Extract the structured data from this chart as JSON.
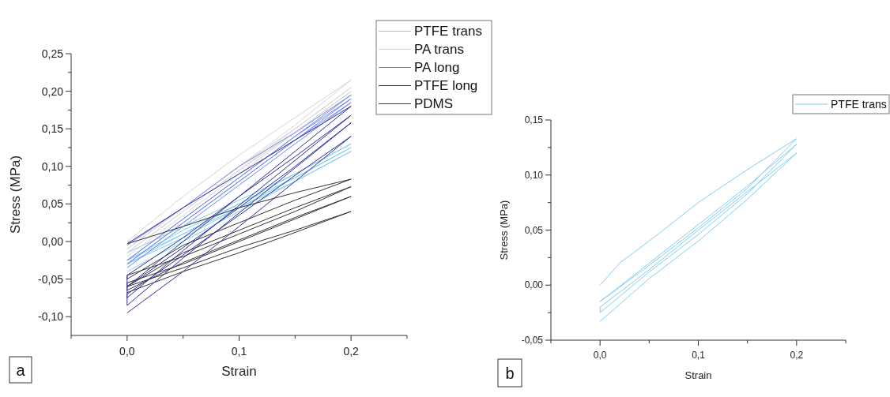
{
  "chart_data": [
    {
      "type": "line",
      "xlabel": "Strain",
      "ylabel": "Stress (MPa)",
      "annotations": [
        "a"
      ],
      "legend": "top right",
      "line_style": "solid",
      "marker": "none",
      "xlim": [
        -0.05,
        0.25
      ],
      "ylim": [
        -0.125,
        0.25
      ],
      "xticks": [
        {
          "value": -0.05,
          "label": null
        },
        {
          "value": 0,
          "label": "0,0"
        },
        {
          "value": 0.05,
          "label": null
        },
        {
          "value": 0.1,
          "label": "0,1"
        },
        {
          "value": 0.15,
          "label": null
        },
        {
          "value": 0.2,
          "label": "0,2"
        },
        {
          "value": 0.25,
          "label": null
        }
      ],
      "yticks": [
        {
          "value": -0.1,
          "label": "-0,10"
        },
        {
          "value": -0.075,
          "label": null
        },
        {
          "value": -0.05,
          "label": "-0,05"
        },
        {
          "value": -0.025,
          "label": null
        },
        {
          "value": 0,
          "label": "0,00"
        },
        {
          "value": 0.025,
          "label": null
        },
        {
          "value": 0.05,
          "label": "0,05"
        },
        {
          "value": 0.075,
          "label": null
        },
        {
          "value": 0.1,
          "label": "0,10"
        },
        {
          "value": 0.125,
          "label": null
        },
        {
          "value": 0.15,
          "label": "0,15"
        },
        {
          "value": 0.175,
          "label": null
        },
        {
          "value": 0.2,
          "label": "0,20"
        },
        {
          "value": 0.225,
          "label": null
        },
        {
          "value": 0.25,
          "label": "0,25"
        }
      ],
      "series": [
        {
          "name": "PTFE trans",
          "color": "#80cdf2",
          "x": [
            0,
            0.05,
            0.1,
            0.15,
            0.2,
            0.15,
            0.1,
            0.05,
            0,
            0.05,
            0.1,
            0.15,
            0.2,
            0.15,
            0.1,
            0.05,
            0,
            0.05,
            0.1,
            0.15,
            0.2,
            0.15,
            0.1,
            0.05,
            0
          ],
          "values": [
            -0.015,
            0.02,
            0.055,
            0.09,
            0.13,
            0.09,
            0.05,
            0.01,
            -0.025,
            0.015,
            0.05,
            0.085,
            0.125,
            0.085,
            0.045,
            0.005,
            -0.03,
            0.01,
            0.045,
            0.08,
            0.12,
            0.08,
            0.04,
            0,
            -0.04
          ]
        },
        {
          "name": "PA trans",
          "color": "#d4d4d4",
          "x": [
            0,
            0.05,
            0.1,
            0.15,
            0.2,
            0.15,
            0.1,
            0.05,
            0,
            0.05,
            0.1,
            0.15,
            0.2,
            0.15,
            0.1,
            0.05,
            0,
            0.05,
            0.1,
            0.15,
            0.2,
            0.15,
            0.1,
            0.05,
            0
          ],
          "values": [
            0,
            0.06,
            0.115,
            0.165,
            0.215,
            0.155,
            0.1,
            0.045,
            -0.01,
            0.045,
            0.1,
            0.15,
            0.205,
            0.15,
            0.095,
            0.04,
            -0.015,
            0.04,
            0.095,
            0.145,
            0.2,
            0.145,
            0.09,
            0.035,
            -0.02
          ]
        },
        {
          "name": "PA long",
          "color": "#6f86f0",
          "x": [
            0,
            0.05,
            0.1,
            0.15,
            0.2,
            0.15,
            0.1,
            0.05,
            0,
            0.05,
            0.1,
            0.15,
            0.2,
            0.15,
            0.1,
            0.05,
            0,
            0.05,
            0.1,
            0.15,
            0.2,
            0.15,
            0.1,
            0.05,
            0
          ],
          "values": [
            -0.005,
            0.045,
            0.1,
            0.145,
            0.195,
            0.14,
            0.085,
            0.03,
            -0.025,
            0.03,
            0.085,
            0.14,
            0.19,
            0.135,
            0.08,
            0.025,
            -0.03,
            0.025,
            0.08,
            0.135,
            0.185,
            0.13,
            0.075,
            0.02,
            -0.035
          ]
        },
        {
          "name": "PTFE long",
          "color": "#333333",
          "x": [
            0,
            0.05,
            0.1,
            0.15,
            0.2,
            0.15,
            0.1,
            0.05,
            0,
            0,
            0.05,
            0.1,
            0.15,
            0.2,
            0.15,
            0.1,
            0.05,
            0,
            0,
            0.05,
            0.1,
            0.15,
            0.2,
            0.15,
            0.1,
            0.05,
            0,
            0,
            0.05,
            0.1,
            0.15,
            0.2,
            0.15,
            0.1,
            0.05,
            0
          ],
          "values": [
            -0.003,
            0.02,
            0.045,
            0.065,
            0.083,
            0.055,
            0.025,
            -0.005,
            -0.05,
            -0.045,
            -0.02,
            0.01,
            0.04,
            0.073,
            0.045,
            0.015,
            -0.015,
            -0.06,
            -0.055,
            -0.03,
            0,
            0.03,
            0.06,
            0.032,
            0.002,
            -0.028,
            -0.065,
            -0.06,
            -0.035,
            -0.008,
            0.015,
            0.04,
            0.012,
            -0.015,
            -0.04,
            -0.068
          ]
        },
        {
          "name": "PDMS",
          "color": "#2b2b9c",
          "x": [
            0,
            0.05,
            0.1,
            0.15,
            0.2,
            0.15,
            0.1,
            0.05,
            0,
            0,
            0.05,
            0.1,
            0.15,
            0.2,
            0.15,
            0.1,
            0.05,
            0,
            0,
            0.05,
            0.1,
            0.15,
            0.2,
            0.15,
            0.1,
            0.05,
            0,
            0,
            0.05,
            0.1,
            0.15,
            0.2,
            0.15,
            0.1,
            0.05,
            0
          ],
          "values": [
            -0.003,
            0.045,
            0.09,
            0.135,
            0.18,
            0.12,
            0.06,
            0,
            -0.06,
            -0.045,
            0.005,
            0.06,
            0.113,
            0.168,
            0.108,
            0.048,
            -0.012,
            -0.075,
            -0.06,
            -0.008,
            0.045,
            0.1,
            0.158,
            0.098,
            0.038,
            -0.022,
            -0.085,
            -0.07,
            -0.018,
            0.035,
            0.088,
            0.14,
            0.08,
            0.02,
            -0.04,
            -0.095
          ]
        }
      ]
    },
    {
      "type": "line",
      "xlabel": "Strain",
      "ylabel": "Stress (MPa)",
      "annotations": [
        "b"
      ],
      "legend": "top right",
      "line_style": "solid",
      "marker": "none",
      "xlim": [
        -0.05,
        0.25
      ],
      "ylim": [
        -0.05,
        0.15
      ],
      "xticks": [
        {
          "value": -0.05,
          "label": null
        },
        {
          "value": 0,
          "label": "0,0"
        },
        {
          "value": 0.05,
          "label": null
        },
        {
          "value": 0.1,
          "label": "0,1"
        },
        {
          "value": 0.15,
          "label": null
        },
        {
          "value": 0.2,
          "label": "0,2"
        },
        {
          "value": 0.25,
          "label": null
        }
      ],
      "yticks": [
        {
          "value": -0.05,
          "label": "-0,05"
        },
        {
          "value": -0.025,
          "label": null
        },
        {
          "value": 0,
          "label": "0,00"
        },
        {
          "value": 0.025,
          "label": null
        },
        {
          "value": 0.05,
          "label": "0,05"
        },
        {
          "value": 0.075,
          "label": null
        },
        {
          "value": 0.1,
          "label": "0,10"
        },
        {
          "value": 0.125,
          "label": null
        },
        {
          "value": 0.15,
          "label": "0,15"
        }
      ],
      "series": [
        {
          "name": "PTFE trans",
          "color": "#80cdf2",
          "x": [
            0,
            0.02,
            0.05,
            0.1,
            0.15,
            0.2,
            0.15,
            0.1,
            0.05,
            0,
            0,
            0.05,
            0.1,
            0.15,
            0.2,
            0.15,
            0.1,
            0.05,
            0,
            0,
            0.05,
            0.1,
            0.15,
            0.2,
            0.15,
            0.1,
            0.05,
            0
          ],
          "values": [
            0,
            0.02,
            0.04,
            0.075,
            0.105,
            0.133,
            0.088,
            0.052,
            0.018,
            -0.015,
            -0.015,
            0.02,
            0.055,
            0.09,
            0.128,
            0.083,
            0.046,
            0.012,
            -0.025,
            -0.02,
            0.014,
            0.05,
            0.085,
            0.12,
            0.078,
            0.04,
            0.006,
            -0.033
          ]
        }
      ]
    }
  ]
}
